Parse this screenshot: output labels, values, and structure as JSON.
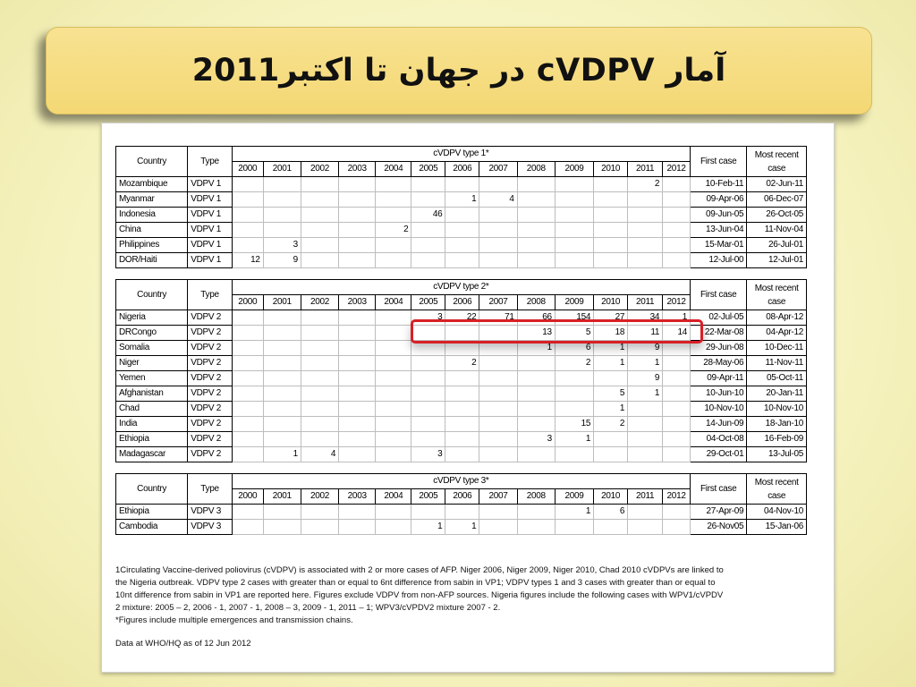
{
  "title": "آمار cVDPV در جهان تا اکتبر2011",
  "tables": [
    {
      "heading": "cVDPV type 1*",
      "country_label": "Country",
      "type_label": "Type",
      "first_case_label": "First case",
      "most_recent_label": "Most recent case",
      "years": [
        "2000",
        "2001",
        "2002",
        "2003",
        "2004",
        "2005",
        "2006",
        "2007",
        "2008",
        "2009",
        "2010",
        "2011",
        "2012"
      ],
      "rows": [
        {
          "country": "Mozambique",
          "type": "VDPV 1",
          "counts": [
            "",
            "",
            "",
            "",
            "",
            "",
            "",
            "",
            "",
            "",
            "",
            "2",
            ""
          ],
          "first": "10-Feb-11",
          "recent": "02-Jun-11"
        },
        {
          "country": "Myanmar",
          "type": "VDPV 1",
          "counts": [
            "",
            "",
            "",
            "",
            "",
            "",
            "1",
            "4",
            "",
            "",
            "",
            "",
            ""
          ],
          "first": "09-Apr-06",
          "recent": "06-Dec-07"
        },
        {
          "country": "Indonesia",
          "type": "VDPV 1",
          "counts": [
            "",
            "",
            "",
            "",
            "",
            "46",
            "",
            "",
            "",
            "",
            "",
            "",
            ""
          ],
          "first": "09-Jun-05",
          "recent": "26-Oct-05"
        },
        {
          "country": "China",
          "type": "VDPV 1",
          "counts": [
            "",
            "",
            "",
            "",
            "2",
            "",
            "",
            "",
            "",
            "",
            "",
            "",
            ""
          ],
          "first": "13-Jun-04",
          "recent": "11-Nov-04"
        },
        {
          "country": "Philippines",
          "type": "VDPV 1",
          "counts": [
            "",
            "3",
            "",
            "",
            "",
            "",
            "",
            "",
            "",
            "",
            "",
            "",
            ""
          ],
          "first": "15-Mar-01",
          "recent": "26-Jul-01"
        },
        {
          "country": "DOR/Haiti",
          "type": "VDPV 1",
          "counts": [
            "12",
            "9",
            "",
            "",
            "",
            "",
            "",
            "",
            "",
            "",
            "",
            "",
            ""
          ],
          "first": "12-Jul-00",
          "recent": "12-Jul-01"
        }
      ]
    },
    {
      "heading": "cVDPV type 2*",
      "country_label": "Country",
      "type_label": "Type",
      "first_case_label": "First case",
      "most_recent_label": "Most recent case",
      "years": [
        "2000",
        "2001",
        "2002",
        "2003",
        "2004",
        "2005",
        "2006",
        "2007",
        "2008",
        "2009",
        "2010",
        "2011",
        "2012"
      ],
      "rows": [
        {
          "country": "Nigeria",
          "type": "VDPV 2",
          "counts": [
            "",
            "",
            "",
            "",
            "",
            "3",
            "22",
            "71",
            "66",
            "154",
            "27",
            "34",
            "1"
          ],
          "first": "02-Jul-05",
          "recent": "08-Apr-12"
        },
        {
          "country": "DRCongo",
          "type": "VDPV 2",
          "counts": [
            "",
            "",
            "",
            "",
            "",
            "",
            "",
            "",
            "13",
            "5",
            "18",
            "11",
            "14"
          ],
          "first": "22-Mar-08",
          "recent": "04-Apr-12"
        },
        {
          "country": "Somalia",
          "type": "VDPV 2",
          "counts": [
            "",
            "",
            "",
            "",
            "",
            "",
            "",
            "",
            "1",
            "6",
            "1",
            "9",
            ""
          ],
          "first": "29-Jun-08",
          "recent": "10-Dec-11"
        },
        {
          "country": "Niger",
          "type": "VDPV 2",
          "counts": [
            "",
            "",
            "",
            "",
            "",
            "",
            "2",
            "",
            "",
            "2",
            "1",
            "1",
            ""
          ],
          "first": "28-May-06",
          "recent": "11-Nov-11"
        },
        {
          "country": "Yemen",
          "type": "VDPV 2",
          "counts": [
            "",
            "",
            "",
            "",
            "",
            "",
            "",
            "",
            "",
            "",
            "",
            "9",
            ""
          ],
          "first": "09-Apr-11",
          "recent": "05-Oct-11"
        },
        {
          "country": "Afghanistan",
          "type": "VDPV 2",
          "counts": [
            "",
            "",
            "",
            "",
            "",
            "",
            "",
            "",
            "",
            "",
            "5",
            "1",
            ""
          ],
          "first": "10-Jun-10",
          "recent": "20-Jan-11"
        },
        {
          "country": "Chad",
          "type": "VDPV 2",
          "counts": [
            "",
            "",
            "",
            "",
            "",
            "",
            "",
            "",
            "",
            "",
            "1",
            "",
            ""
          ],
          "first": "10-Nov-10",
          "recent": "10-Nov-10"
        },
        {
          "country": "India",
          "type": "VDPV 2",
          "counts": [
            "",
            "",
            "",
            "",
            "",
            "",
            "",
            "",
            "",
            "15",
            "2",
            "",
            ""
          ],
          "first": "14-Jun-09",
          "recent": "18-Jan-10"
        },
        {
          "country": "Ethiopia",
          "type": "VDPV 2",
          "counts": [
            "",
            "",
            "",
            "",
            "",
            "",
            "",
            "",
            "3",
            "1",
            "",
            "",
            ""
          ],
          "first": "04-Oct-08",
          "recent": "16-Feb-09"
        },
        {
          "country": "Madagascar",
          "type": "VDPV 2",
          "counts": [
            "",
            "1",
            "4",
            "",
            "",
            "3",
            "",
            "",
            "",
            "",
            "",
            "",
            ""
          ],
          "first": "29-Oct-01",
          "recent": "13-Jul-05"
        }
      ]
    },
    {
      "heading": "cVDPV type 3*",
      "country_label": "Country",
      "type_label": "Type",
      "first_case_label": "First case",
      "most_recent_label": "Most recent case",
      "years": [
        "2000",
        "2001",
        "2002",
        "2003",
        "2004",
        "2005",
        "2006",
        "2007",
        "2008",
        "2009",
        "2010",
        "2011",
        "2012"
      ],
      "rows": [
        {
          "country": "Ethiopia",
          "type": "VDPV 3",
          "counts": [
            "",
            "",
            "",
            "",
            "",
            "",
            "",
            "",
            "",
            "1",
            "6",
            "",
            ""
          ],
          "first": "27-Apr-09",
          "recent": "04-Nov-10"
        },
        {
          "country": "Cambodia",
          "type": "VDPV 3",
          "counts": [
            "",
            "",
            "",
            "",
            "",
            "1",
            "1",
            "",
            "",
            "",
            "",
            "",
            ""
          ],
          "first": "26-Nov05",
          "recent": "15-Jan-06"
        }
      ]
    }
  ],
  "footnote_lines": [
    "1Circulating Vaccine-derived poliovirus (cVDPV) is associated with 2 or more cases of AFP. Niger 2006, Niger 2009, Niger 2010, Chad 2010 cVDPVs are linked to",
    "the Nigeria outbreak. VDPV type 2 cases with greater than or equal to 6nt difference from sabin in VP1; VDPV types 1 and 3 cases with greater than or equal to",
    "10nt difference from sabin in VP1 are reported here. Figures exclude VDPV from non-AFP sources. Nigeria figures include the following cases with WPV1/cVPDV",
    "2 mixture: 2005 – 2, 2006 - 1, 2007 - 1, 2008 – 3, 2009 - 1, 2011 – 1; WPV3/cVPDV2 mixture 2007 - 2.",
    "*Figures include multiple emergences and transmission chains."
  ],
  "data_source": "Data at WHO/HQ as of 12 Jun 2012",
  "colors": {
    "highlight": "#d81f26",
    "title_bg": "#f7df86",
    "page_bg": "#f7f5c7"
  }
}
